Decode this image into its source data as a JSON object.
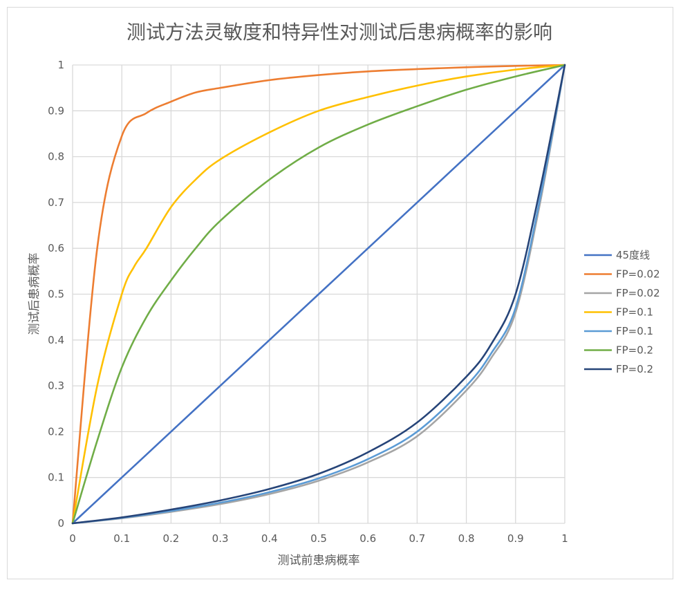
{
  "chart_data": {
    "type": "line",
    "title": "测试方法灵敏度和特异性对测试后患病概率的影响",
    "xlabel": "测试前患病概率",
    "ylabel": "测试后患病概率",
    "xlim": [
      0,
      1
    ],
    "ylim": [
      0,
      1
    ],
    "x_ticks": [
      "0",
      "0.1",
      "0.2",
      "0.3",
      "0.4",
      "0.5",
      "0.6",
      "0.7",
      "0.8",
      "0.9",
      "1"
    ],
    "y_ticks": [
      "0",
      "0.1",
      "0.2",
      "0.3",
      "0.4",
      "0.5",
      "0.6",
      "0.7",
      "0.8",
      "0.9",
      "1"
    ],
    "grid": true,
    "legend_position": "right",
    "series": [
      {
        "name": "45度线",
        "color": "#4472c4",
        "points": [
          [
            0,
            0
          ],
          [
            0.1,
            0.1
          ],
          [
            0.2,
            0.2
          ],
          [
            0.3,
            0.3
          ],
          [
            0.4,
            0.4
          ],
          [
            0.5,
            0.5
          ],
          [
            0.6,
            0.6
          ],
          [
            0.7,
            0.7
          ],
          [
            0.8,
            0.8
          ],
          [
            0.9,
            0.9
          ],
          [
            1,
            1
          ]
        ]
      },
      {
        "name": "FP=0.02",
        "color": "#ed7d31",
        "points": [
          [
            0,
            0
          ],
          [
            0.05,
            0.6
          ],
          [
            0.1,
            0.845
          ],
          [
            0.15,
            0.895
          ],
          [
            0.2,
            0.92
          ],
          [
            0.25,
            0.94
          ],
          [
            0.3,
            0.95
          ],
          [
            0.4,
            0.967
          ],
          [
            0.5,
            0.978
          ],
          [
            0.6,
            0.986
          ],
          [
            0.7,
            0.991
          ],
          [
            0.8,
            0.995
          ],
          [
            0.9,
            0.998
          ],
          [
            1,
            1
          ]
        ]
      },
      {
        "name": "FP=0.02",
        "color": "#a5a5a5",
        "points": [
          [
            0,
            0
          ],
          [
            0.1,
            0.011
          ],
          [
            0.2,
            0.025
          ],
          [
            0.3,
            0.042
          ],
          [
            0.4,
            0.064
          ],
          [
            0.5,
            0.093
          ],
          [
            0.6,
            0.133
          ],
          [
            0.7,
            0.19
          ],
          [
            0.8,
            0.29
          ],
          [
            0.85,
            0.36
          ],
          [
            0.9,
            0.46
          ],
          [
            0.95,
            0.7
          ],
          [
            1,
            1
          ]
        ]
      },
      {
        "name": "FP=0.1",
        "color": "#ffc000",
        "points": [
          [
            0,
            0
          ],
          [
            0.05,
            0.3
          ],
          [
            0.1,
            0.5
          ],
          [
            0.125,
            0.56
          ],
          [
            0.15,
            0.6
          ],
          [
            0.2,
            0.69
          ],
          [
            0.25,
            0.75
          ],
          [
            0.3,
            0.794
          ],
          [
            0.4,
            0.853
          ],
          [
            0.5,
            0.9
          ],
          [
            0.6,
            0.93
          ],
          [
            0.7,
            0.955
          ],
          [
            0.8,
            0.975
          ],
          [
            0.9,
            0.99
          ],
          [
            1,
            1
          ]
        ]
      },
      {
        "name": "FP=0.1",
        "color": "#5b9bd5",
        "points": [
          [
            0,
            0
          ],
          [
            0.1,
            0.012
          ],
          [
            0.2,
            0.027
          ],
          [
            0.3,
            0.045
          ],
          [
            0.4,
            0.068
          ],
          [
            0.5,
            0.098
          ],
          [
            0.6,
            0.14
          ],
          [
            0.7,
            0.2
          ],
          [
            0.8,
            0.3
          ],
          [
            0.85,
            0.37
          ],
          [
            0.9,
            0.47
          ],
          [
            0.95,
            0.71
          ],
          [
            1,
            1
          ]
        ]
      },
      {
        "name": "FP=0.2",
        "color": "#70ad47",
        "points": [
          [
            0,
            0
          ],
          [
            0.05,
            0.18
          ],
          [
            0.1,
            0.34
          ],
          [
            0.15,
            0.45
          ],
          [
            0.2,
            0.53
          ],
          [
            0.25,
            0.6
          ],
          [
            0.3,
            0.66
          ],
          [
            0.4,
            0.75
          ],
          [
            0.5,
            0.82
          ],
          [
            0.6,
            0.87
          ],
          [
            0.7,
            0.91
          ],
          [
            0.8,
            0.946
          ],
          [
            0.9,
            0.975
          ],
          [
            1,
            1
          ]
        ]
      },
      {
        "name": "FP=0.2",
        "color": "#264478",
        "points": [
          [
            0,
            0
          ],
          [
            0.1,
            0.013
          ],
          [
            0.2,
            0.03
          ],
          [
            0.3,
            0.05
          ],
          [
            0.4,
            0.075
          ],
          [
            0.5,
            0.108
          ],
          [
            0.6,
            0.155
          ],
          [
            0.7,
            0.22
          ],
          [
            0.8,
            0.32
          ],
          [
            0.85,
            0.39
          ],
          [
            0.9,
            0.5
          ],
          [
            0.95,
            0.73
          ],
          [
            1,
            1
          ]
        ]
      }
    ]
  },
  "colors": {
    "grid": "#d9d9d9",
    "text": "#595959",
    "frame": "#d9d9d9"
  }
}
